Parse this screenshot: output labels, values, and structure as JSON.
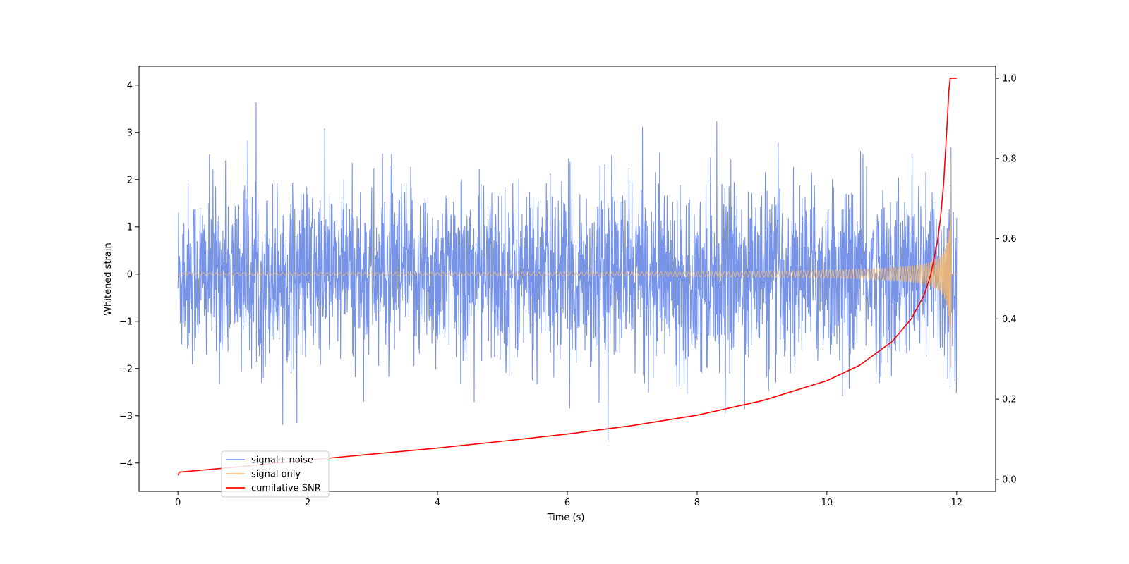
{
  "chart_data": {
    "type": "line",
    "title": "",
    "xlabel": "Time (s)",
    "ylabel": "Whitened strain",
    "y2label": "",
    "xlim": [
      -0.6,
      12.6
    ],
    "ylim": [
      -4.6,
      4.4
    ],
    "y2lim": [
      -0.03,
      1.03
    ],
    "x_ticks": [
      0,
      2,
      4,
      6,
      8,
      10,
      12
    ],
    "y_ticks": [
      -4,
      -3,
      -2,
      -1,
      0,
      1,
      2,
      3,
      4
    ],
    "y2_ticks": [
      0.0,
      0.2,
      0.4,
      0.6,
      0.8,
      1.0
    ],
    "x_tick_labels": [
      "0",
      "2",
      "4",
      "6",
      "8",
      "10",
      "12"
    ],
    "y_tick_labels": [
      "−4",
      "−3",
      "−2",
      "−1",
      "0",
      "1",
      "2",
      "3",
      "4"
    ],
    "y2_tick_labels": [
      "0.0",
      "0.2",
      "0.4",
      "0.6",
      "0.8",
      "1.0"
    ],
    "grid": false,
    "legend_position": "lower-left",
    "series": [
      {
        "name": "signal+ noise",
        "color": "#6b8be6",
        "axis": "left",
        "description_x_range": [
          0,
          12
        ],
        "noise_envelope": [
          -3.5,
          4.0
        ]
      },
      {
        "name": "signal only",
        "color": "#f5b96b",
        "axis": "left",
        "x_end": 12.0
      },
      {
        "name": "cumilative SNR",
        "color": "#ff0000",
        "axis": "right",
        "x": [
          0.0,
          0.02,
          1,
          2,
          3,
          4,
          5,
          6,
          7,
          8,
          9,
          10,
          10.5,
          11,
          11.3,
          11.5,
          11.6,
          11.7,
          11.75,
          11.8,
          11.85,
          11.88,
          11.9,
          12.0
        ],
        "y": [
          0.01,
          0.018,
          0.032,
          0.048,
          0.063,
          0.078,
          0.095,
          0.113,
          0.134,
          0.16,
          0.196,
          0.246,
          0.284,
          0.343,
          0.4,
          0.46,
          0.51,
          0.59,
          0.65,
          0.74,
          0.88,
          0.97,
          1.0,
          1.0
        ]
      }
    ]
  }
}
